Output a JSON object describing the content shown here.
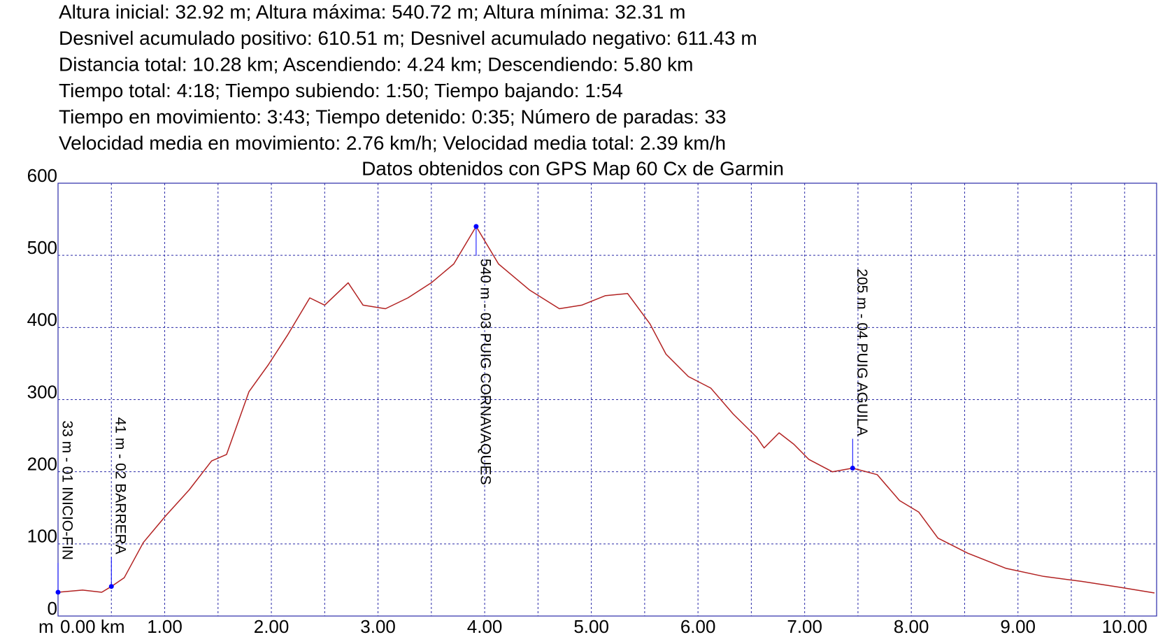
{
  "chart_data": {
    "type": "line",
    "header_lines": [
      "Altura inicial: 32.92 m; Altura máxima: 540.72 m; Altura mínima: 32.31 m",
      "Desnivel acumulado positivo: 610.51 m; Desnivel acumulado negativo: 611.43 m",
      "Distancia total: 10.28 km; Ascendiendo: 4.24 km; Descendiendo: 5.80 km",
      "Tiempo total: 4:18; Tiempo subiendo: 1:50; Tiempo bajando: 1:54",
      "Tiempo en movimiento: 3:43; Tiempo detenido: 0:35; Número de paradas: 33",
      "Velocidad media en movimiento: 2.76 km/h; Velocidad media total: 2.39 km/h"
    ],
    "title": "Datos obtenidos con GPS Map 60 Cx de Garmin",
    "y_unit": "m",
    "x": [
      0,
      0.23,
      0.41,
      0.5,
      0.62,
      0.8,
      1.01,
      1.23,
      1.44,
      1.58,
      1.79,
      1.97,
      2.15,
      2.36,
      2.5,
      2.72,
      2.86,
      3.07,
      3.28,
      3.5,
      3.71,
      3.92,
      4.13,
      4.42,
      4.7,
      4.91,
      5.13,
      5.34,
      5.55,
      5.7,
      5.91,
      6.12,
      6.33,
      6.55,
      6.62,
      6.76,
      6.9,
      7.04,
      7.26,
      7.45,
      7.68,
      7.89,
      8.07,
      8.25,
      8.53,
      8.89,
      9.24,
      9.6,
      9.95,
      10.28
    ],
    "series": [
      {
        "color": "#b22222",
        "values": [
          33,
          36,
          33,
          41,
          53,
          102,
          139,
          175,
          215,
          224,
          311,
          348,
          389,
          441,
          431,
          462,
          431,
          426,
          441,
          462,
          488,
          540,
          488,
          452,
          426,
          431,
          444,
          447,
          405,
          363,
          332,
          316,
          280,
          248,
          233,
          254,
          238,
          217,
          200,
          205,
          196,
          160,
          144,
          108,
          87,
          66,
          55,
          48,
          40,
          32
        ]
      }
    ],
    "waypoints": [
      {
        "x": 0,
        "y": 33,
        "label": "33 m - 01 INICIO-FIN"
      },
      {
        "x": 0.5,
        "y": 41,
        "label": "41 m - 02 BARRERA"
      },
      {
        "x": 3.92,
        "y": 540,
        "label": "540 m - 03 PUIG CORNAVAQUES"
      },
      {
        "x": 7.45,
        "y": 205,
        "label": "205 m - 04 PUIG AGUILA"
      }
    ],
    "waypoint_color": "#0000ff",
    "xlim": [
      0,
      10.3
    ],
    "ylim": [
      0,
      600
    ],
    "xticks": [
      {
        "value": 0,
        "label": "0.00 km"
      },
      {
        "value": 1,
        "label": "1.00"
      },
      {
        "value": 2,
        "label": "2.00"
      },
      {
        "value": 3,
        "label": "3.00"
      },
      {
        "value": 4,
        "label": "4.00"
      },
      {
        "value": 5,
        "label": "5.00"
      },
      {
        "value": 6,
        "label": "6.00"
      },
      {
        "value": 7,
        "label": "7.00"
      },
      {
        "value": 8,
        "label": "8.00"
      },
      {
        "value": 9,
        "label": "9.00"
      },
      {
        "value": 10,
        "label": "10.00"
      }
    ],
    "x_minor_gridlines": [
      0.5,
      1.5,
      2.5,
      3.5,
      4.5,
      5.5,
      6.5,
      7.5,
      8.5,
      9.5
    ],
    "yticks": [
      0,
      100,
      200,
      300,
      400,
      500,
      600
    ],
    "grid": true,
    "grid_color": "#2a2aa8"
  }
}
